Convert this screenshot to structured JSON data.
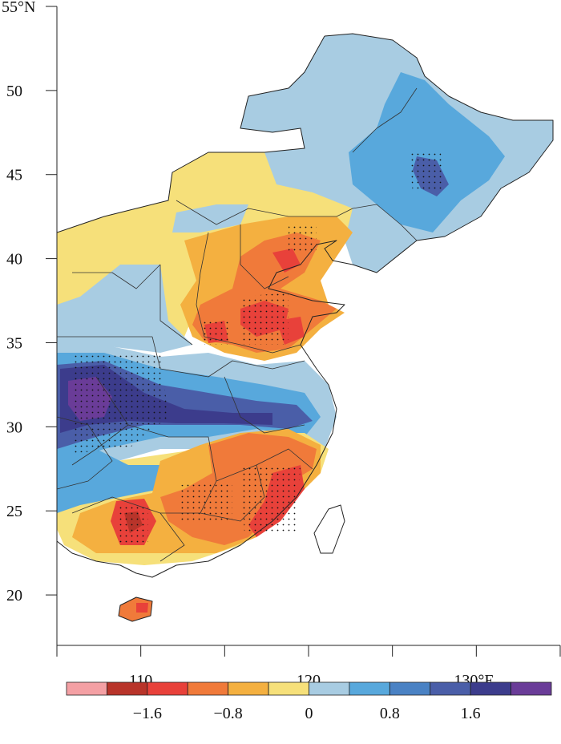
{
  "map": {
    "lat_ticks": [
      {
        "value": 55,
        "label": "55°N"
      },
      {
        "value": 50,
        "label": "50"
      },
      {
        "value": 45,
        "label": "45"
      },
      {
        "value": 40,
        "label": "40"
      },
      {
        "value": 35,
        "label": "35"
      },
      {
        "value": 30,
        "label": "30"
      },
      {
        "value": 25,
        "label": "25"
      },
      {
        "value": 20,
        "label": "20"
      }
    ],
    "lon_ticks": [
      {
        "value": 105,
        "label": ""
      },
      {
        "value": 110,
        "label": "110"
      },
      {
        "value": 115,
        "label": ""
      },
      {
        "value": 120,
        "label": "120"
      },
      {
        "value": 125,
        "label": ""
      },
      {
        "value": 130,
        "label": "130°E"
      },
      {
        "value": 135,
        "label": ""
      }
    ],
    "lon_range": [
      105,
      135
    ],
    "lat_range": [
      17,
      55
    ],
    "grid": false
  },
  "colorbar": {
    "colors": [
      "#f4a0a4",
      "#b8342a",
      "#e8413a",
      "#f07a3a",
      "#f4b040",
      "#f6e07a",
      "#a8cce2",
      "#58a8dc",
      "#4a82c4",
      "#4a5ea8",
      "#3c3c8c",
      "#6a3c98"
    ],
    "labels": [
      {
        "value": -1.6,
        "label": "−1.6"
      },
      {
        "value": -0.8,
        "label": "−0.8"
      },
      {
        "value": 0,
        "label": "0"
      },
      {
        "value": 0.8,
        "label": "0.8"
      },
      {
        "value": 1.6,
        "label": "1.6"
      }
    ],
    "levels": [
      -2.0,
      -1.6,
      -1.2,
      -0.8,
      -0.4,
      0,
      0.4,
      0.8,
      1.2,
      1.6,
      2.0
    ]
  }
}
